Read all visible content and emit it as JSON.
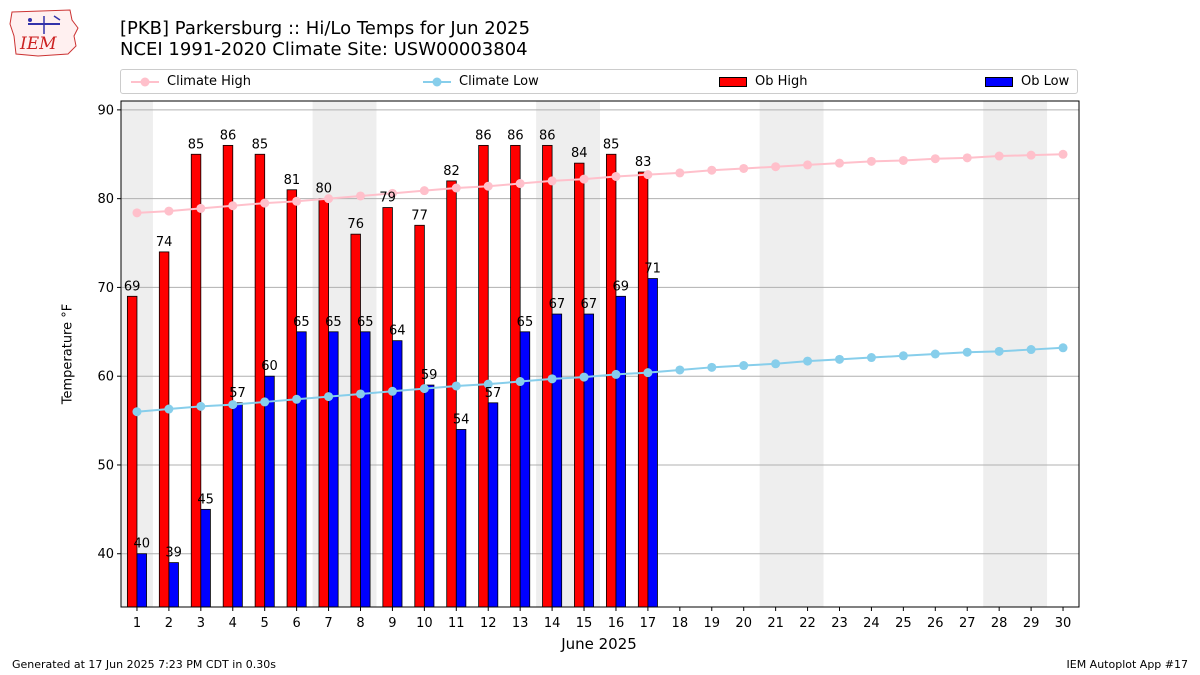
{
  "header": {
    "title_line1": "[PKB] Parkersburg :: Hi/Lo Temps for Jun 2025",
    "title_line2": "NCEI 1991-2020 Climate Site: USW00003804",
    "logo_text": "IEM"
  },
  "footer": {
    "left": "Generated at 17 Jun 2025 7:23 PM CDT in 0.30s",
    "right": "IEM Autoplot App #17"
  },
  "colors": {
    "climate_high": "#ffc0cb",
    "climate_low": "#87ceeb",
    "ob_high": "#ff0000",
    "ob_low": "#0000ff",
    "weekend_shade": "#eeeeee"
  },
  "chart_data": {
    "type": "bar",
    "xlabel": "June 2025",
    "ylabel": "Temperature °F",
    "ylim": [
      34,
      91
    ],
    "yticks": [
      40,
      50,
      60,
      70,
      80,
      90
    ],
    "grid": true,
    "legend_position": "top",
    "days": [
      1,
      2,
      3,
      4,
      5,
      6,
      7,
      8,
      9,
      10,
      11,
      12,
      13,
      14,
      15,
      16,
      17,
      18,
      19,
      20,
      21,
      22,
      23,
      24,
      25,
      26,
      27,
      28,
      29,
      30
    ],
    "weekend_spans": [
      [
        1,
        1
      ],
      [
        7,
        8
      ],
      [
        14,
        15
      ],
      [
        21,
        22
      ],
      [
        28,
        29
      ]
    ],
    "series": [
      {
        "name": "Climate High",
        "kind": "line",
        "values": [
          78.4,
          78.6,
          78.9,
          79.2,
          79.5,
          79.7,
          80.0,
          80.3,
          80.6,
          80.9,
          81.2,
          81.4,
          81.7,
          82.0,
          82.2,
          82.5,
          82.7,
          82.9,
          83.2,
          83.4,
          83.6,
          83.8,
          84.0,
          84.2,
          84.3,
          84.5,
          84.6,
          84.8,
          84.9,
          85.0
        ]
      },
      {
        "name": "Climate Low",
        "kind": "line",
        "values": [
          56.0,
          56.3,
          56.6,
          56.8,
          57.1,
          57.4,
          57.7,
          58.0,
          58.3,
          58.6,
          58.9,
          59.1,
          59.4,
          59.7,
          59.9,
          60.2,
          60.4,
          60.7,
          61.0,
          61.2,
          61.4,
          61.7,
          61.9,
          62.1,
          62.3,
          62.5,
          62.7,
          62.8,
          63.0,
          63.2
        ]
      },
      {
        "name": "Ob High",
        "kind": "bar",
        "values": [
          69,
          74,
          85,
          86,
          85,
          81,
          80,
          76,
          79,
          77,
          82,
          86,
          86,
          86,
          84,
          85,
          83
        ]
      },
      {
        "name": "Ob Low",
        "kind": "bar",
        "values": [
          40,
          39,
          45,
          57,
          60,
          65,
          65,
          65,
          64,
          59,
          54,
          57,
          65,
          67,
          67,
          69,
          71
        ]
      }
    ]
  }
}
